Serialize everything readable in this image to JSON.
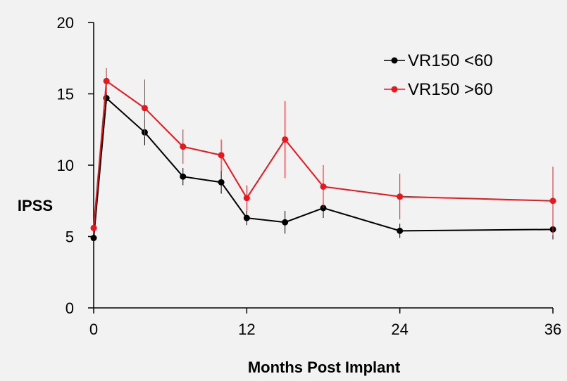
{
  "chart_data": {
    "type": "line",
    "title": "",
    "xlabel": "Months Post Implant",
    "ylabel": "IPSS",
    "xlim": [
      0,
      36
    ],
    "ylim": [
      0,
      20
    ],
    "x_ticks": [
      0,
      12,
      24,
      36
    ],
    "y_ticks": [
      0,
      5,
      10,
      15,
      20
    ],
    "grid": false,
    "legend_position": "top-right",
    "series": [
      {
        "name": "VR150 <60",
        "color": "#000000",
        "x": [
          0,
          1,
          4,
          7,
          10,
          12,
          15,
          18,
          24,
          36
        ],
        "y": [
          4.9,
          14.7,
          12.3,
          9.2,
          8.8,
          6.3,
          6.0,
          7.0,
          5.4,
          5.5
        ],
        "err": [
          0.3,
          0.4,
          0.9,
          0.6,
          0.8,
          0.5,
          0.8,
          0.7,
          0.5,
          0.7
        ]
      },
      {
        "name": "VR150 >60",
        "color": "#e8171c",
        "x": [
          0,
          1,
          4,
          7,
          10,
          12,
          15,
          18,
          24,
          36
        ],
        "y": [
          5.6,
          15.9,
          14.0,
          11.3,
          10.7,
          7.7,
          11.8,
          8.5,
          7.8,
          7.5
        ],
        "err": [
          0.4,
          0.9,
          2.0,
          1.2,
          1.1,
          0.9,
          2.7,
          1.5,
          1.6,
          2.4
        ]
      }
    ]
  }
}
